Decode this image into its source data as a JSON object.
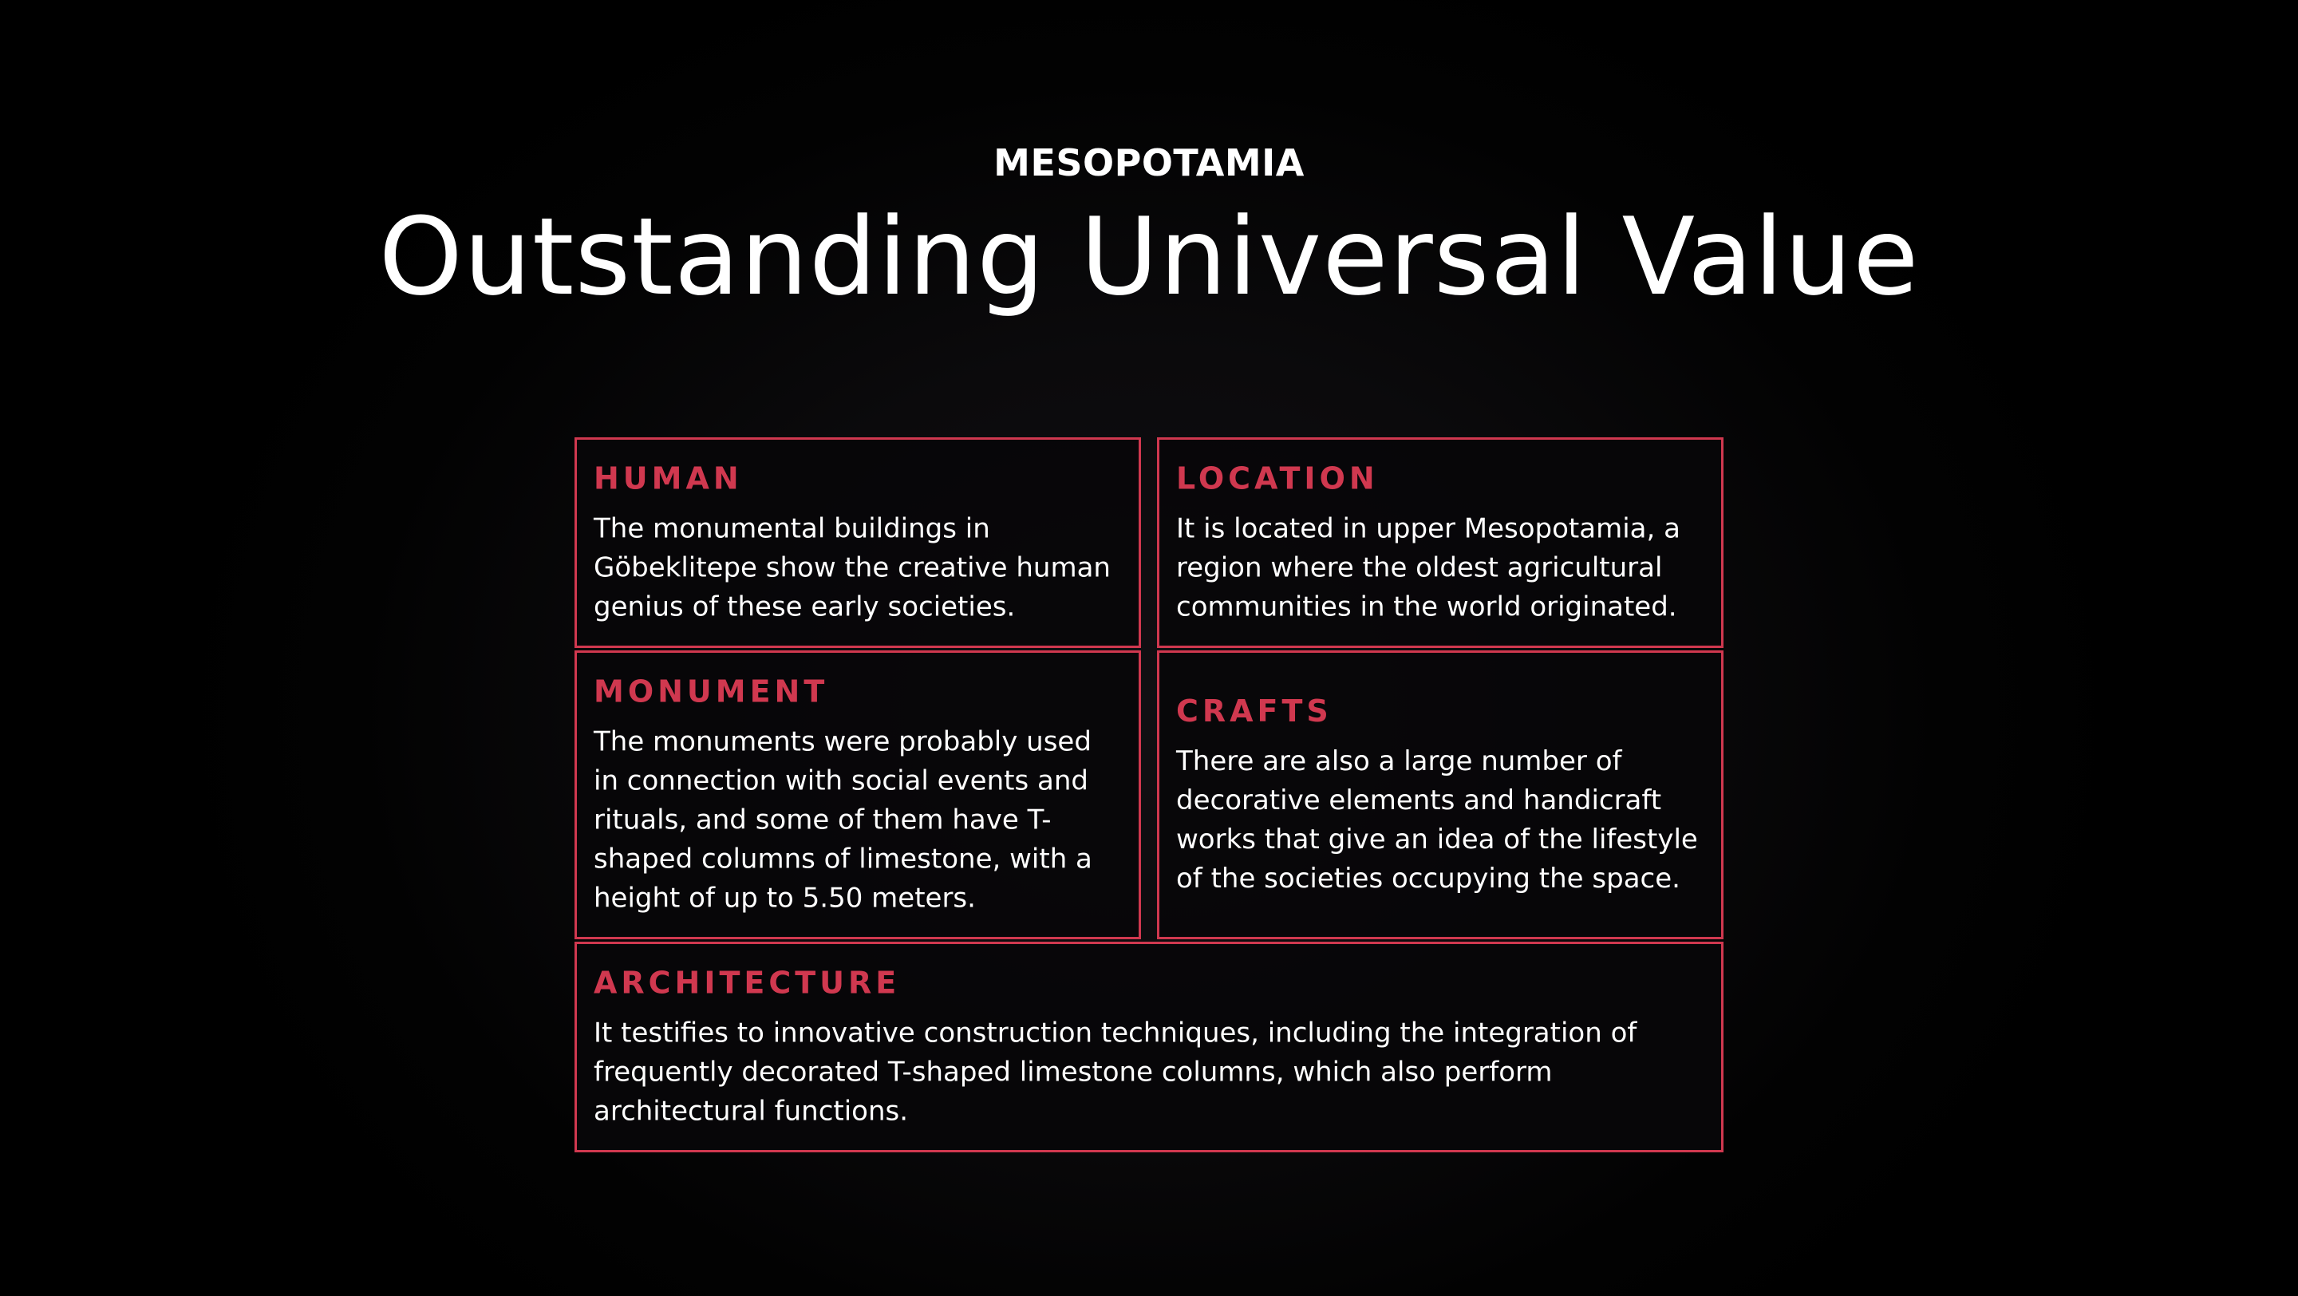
{
  "header": {
    "eyebrow": "MESOPOTAMIA",
    "title": "Outstanding Universal Value"
  },
  "cards": [
    {
      "heading": "HUMAN",
      "body": "The monumental buildings in Göbeklitepe show the creative human genius of these early societies."
    },
    {
      "heading": "LOCATION",
      "body": "It is located in upper Mesopotamia, a region where the oldest agricultural communities in the world originated."
    },
    {
      "heading": "MONUMENT",
      "body": "The monuments were probably used in connection with social events and rituals, and some of them have T-shaped columns of limestone, with a height of up to 5.50 meters."
    },
    {
      "heading": "CRAFTS",
      "body": "There are also a large number of decorative elements and handicraft works that give an idea of the lifestyle of the societies occupying the space."
    },
    {
      "heading": "ARCHITECTURE",
      "body": "It testifies to innovative construction techniques, including the integration of frequently decorated T-shaped limestone columns, which also perform architectural functions."
    }
  ],
  "colors": {
    "background": "#000000",
    "accent": "#d0384f",
    "text": "#ffffff"
  }
}
